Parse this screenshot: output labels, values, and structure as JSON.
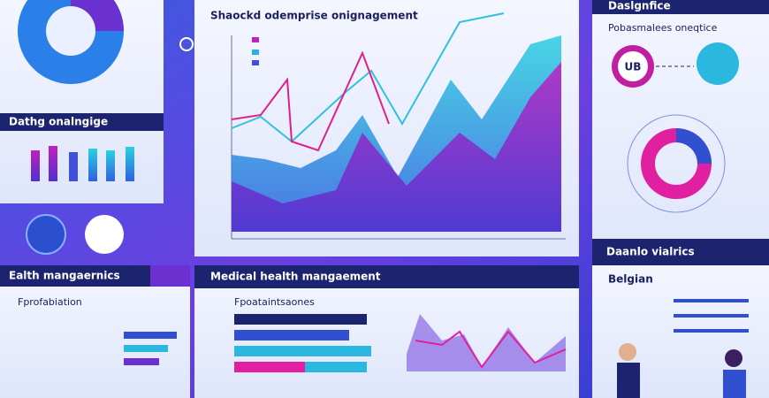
{
  "top_left_panel": {
    "title": "Dathg onalngige"
  },
  "main_chart": {
    "title": "Shaockd odemprise onignagement"
  },
  "right_panel": {
    "header": "Daslgnfice",
    "subtitle": "Pobasmalees oneqtice",
    "badge": "UB",
    "footer": "Daanlo vialrics"
  },
  "bottom_left_panel": {
    "header": "Ealth mangaernics",
    "subtitle": "Fprofabiation"
  },
  "bottom_center_panel": {
    "header": "Medical health mangaement",
    "subtitle": "Fpoataintsaones"
  },
  "bottom_right_panel": {
    "header": "Belgian"
  }
}
